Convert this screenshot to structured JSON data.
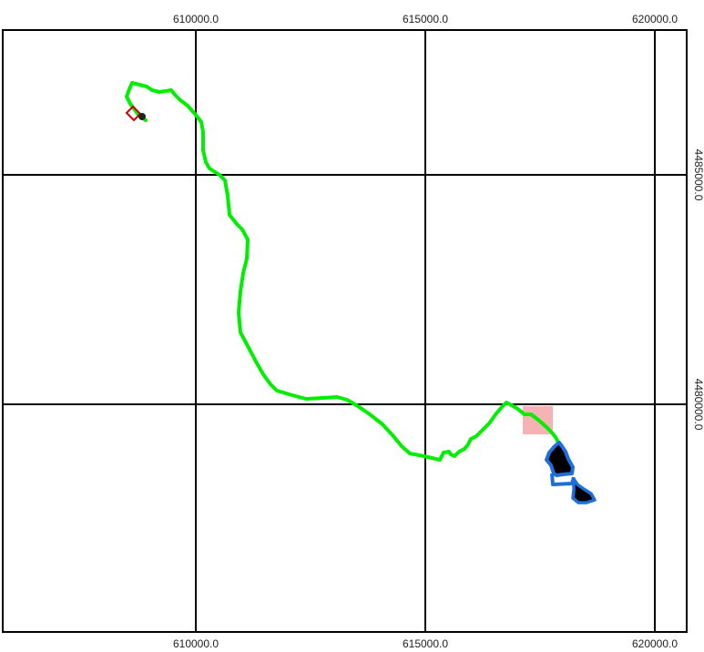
{
  "map": {
    "grid_labels": {
      "x_top": [
        "610000.0",
        "615000.0",
        "620000.0"
      ],
      "x_bottom": [
        "610000.0",
        "615000.0",
        "620000.0"
      ],
      "y_right": [
        "4485000.0",
        "4480000.0"
      ]
    },
    "colors": {
      "frame": "#000000",
      "grid": "#000000",
      "route": "#00ee00",
      "loop": "#1e6fdc",
      "area_fill": "#000000",
      "highlight_box": "#f4a6a6",
      "start_marker": "#cc0000",
      "start_dot": "#222222"
    },
    "features": {
      "route": "green-track",
      "loop": "blue-loop",
      "areas": "black-polygons",
      "highlight": "pink-rectangle",
      "start": "red-diamond-marker"
    }
  }
}
